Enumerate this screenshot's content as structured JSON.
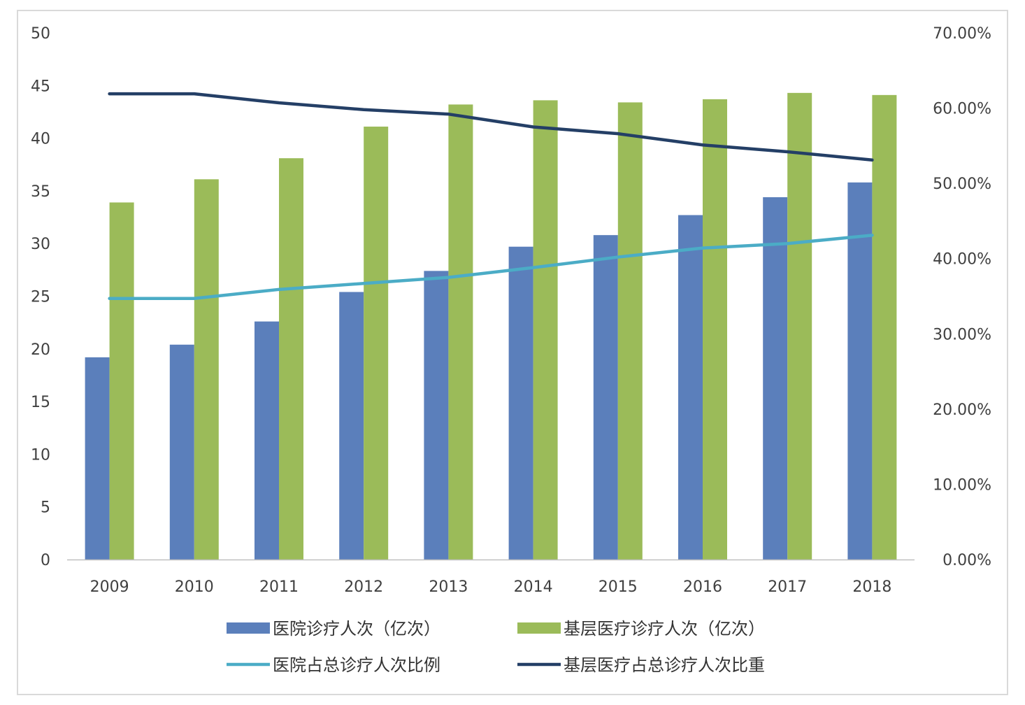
{
  "chart_data": {
    "type": "bar",
    "categories": [
      "2009",
      "2010",
      "2011",
      "2012",
      "2013",
      "2014",
      "2015",
      "2016",
      "2017",
      "2018"
    ],
    "bar_series": [
      {
        "name": "医院诊疗人次（亿次）",
        "color": "#5b7fbb",
        "values": [
          19.2,
          20.4,
          22.6,
          25.4,
          27.4,
          29.7,
          30.8,
          32.7,
          34.4,
          35.8
        ]
      },
      {
        "name": "基层医疗诊疗人次（亿次）",
        "color": "#9bbb59",
        "values": [
          33.9,
          36.1,
          38.1,
          41.1,
          43.2,
          43.6,
          43.4,
          43.7,
          44.3,
          44.1
        ]
      }
    ],
    "line_series": [
      {
        "name": "医院占总诊疗人次比例",
        "color": "#4bacc6",
        "values": [
          0.347,
          0.347,
          0.359,
          0.367,
          0.375,
          0.388,
          0.402,
          0.414,
          0.42,
          0.431
        ]
      },
      {
        "name": "基层医疗占总诊疗人次比重",
        "color": "#243f66",
        "values": [
          0.619,
          0.619,
          0.607,
          0.598,
          0.592,
          0.575,
          0.566,
          0.551,
          0.542,
          0.531
        ]
      }
    ],
    "left_axis": {
      "min": 0,
      "max": 50,
      "ticks": [
        "0",
        "5",
        "10",
        "15",
        "20",
        "25",
        "30",
        "35",
        "40",
        "45",
        "50"
      ]
    },
    "right_axis": {
      "min": 0,
      "max": 0.7,
      "ticks": [
        "0.00%",
        "10.00%",
        "20.00%",
        "30.00%",
        "40.00%",
        "50.00%",
        "60.00%",
        "70.00%"
      ]
    },
    "legend": {
      "position": "bottom"
    },
    "grid": false
  }
}
